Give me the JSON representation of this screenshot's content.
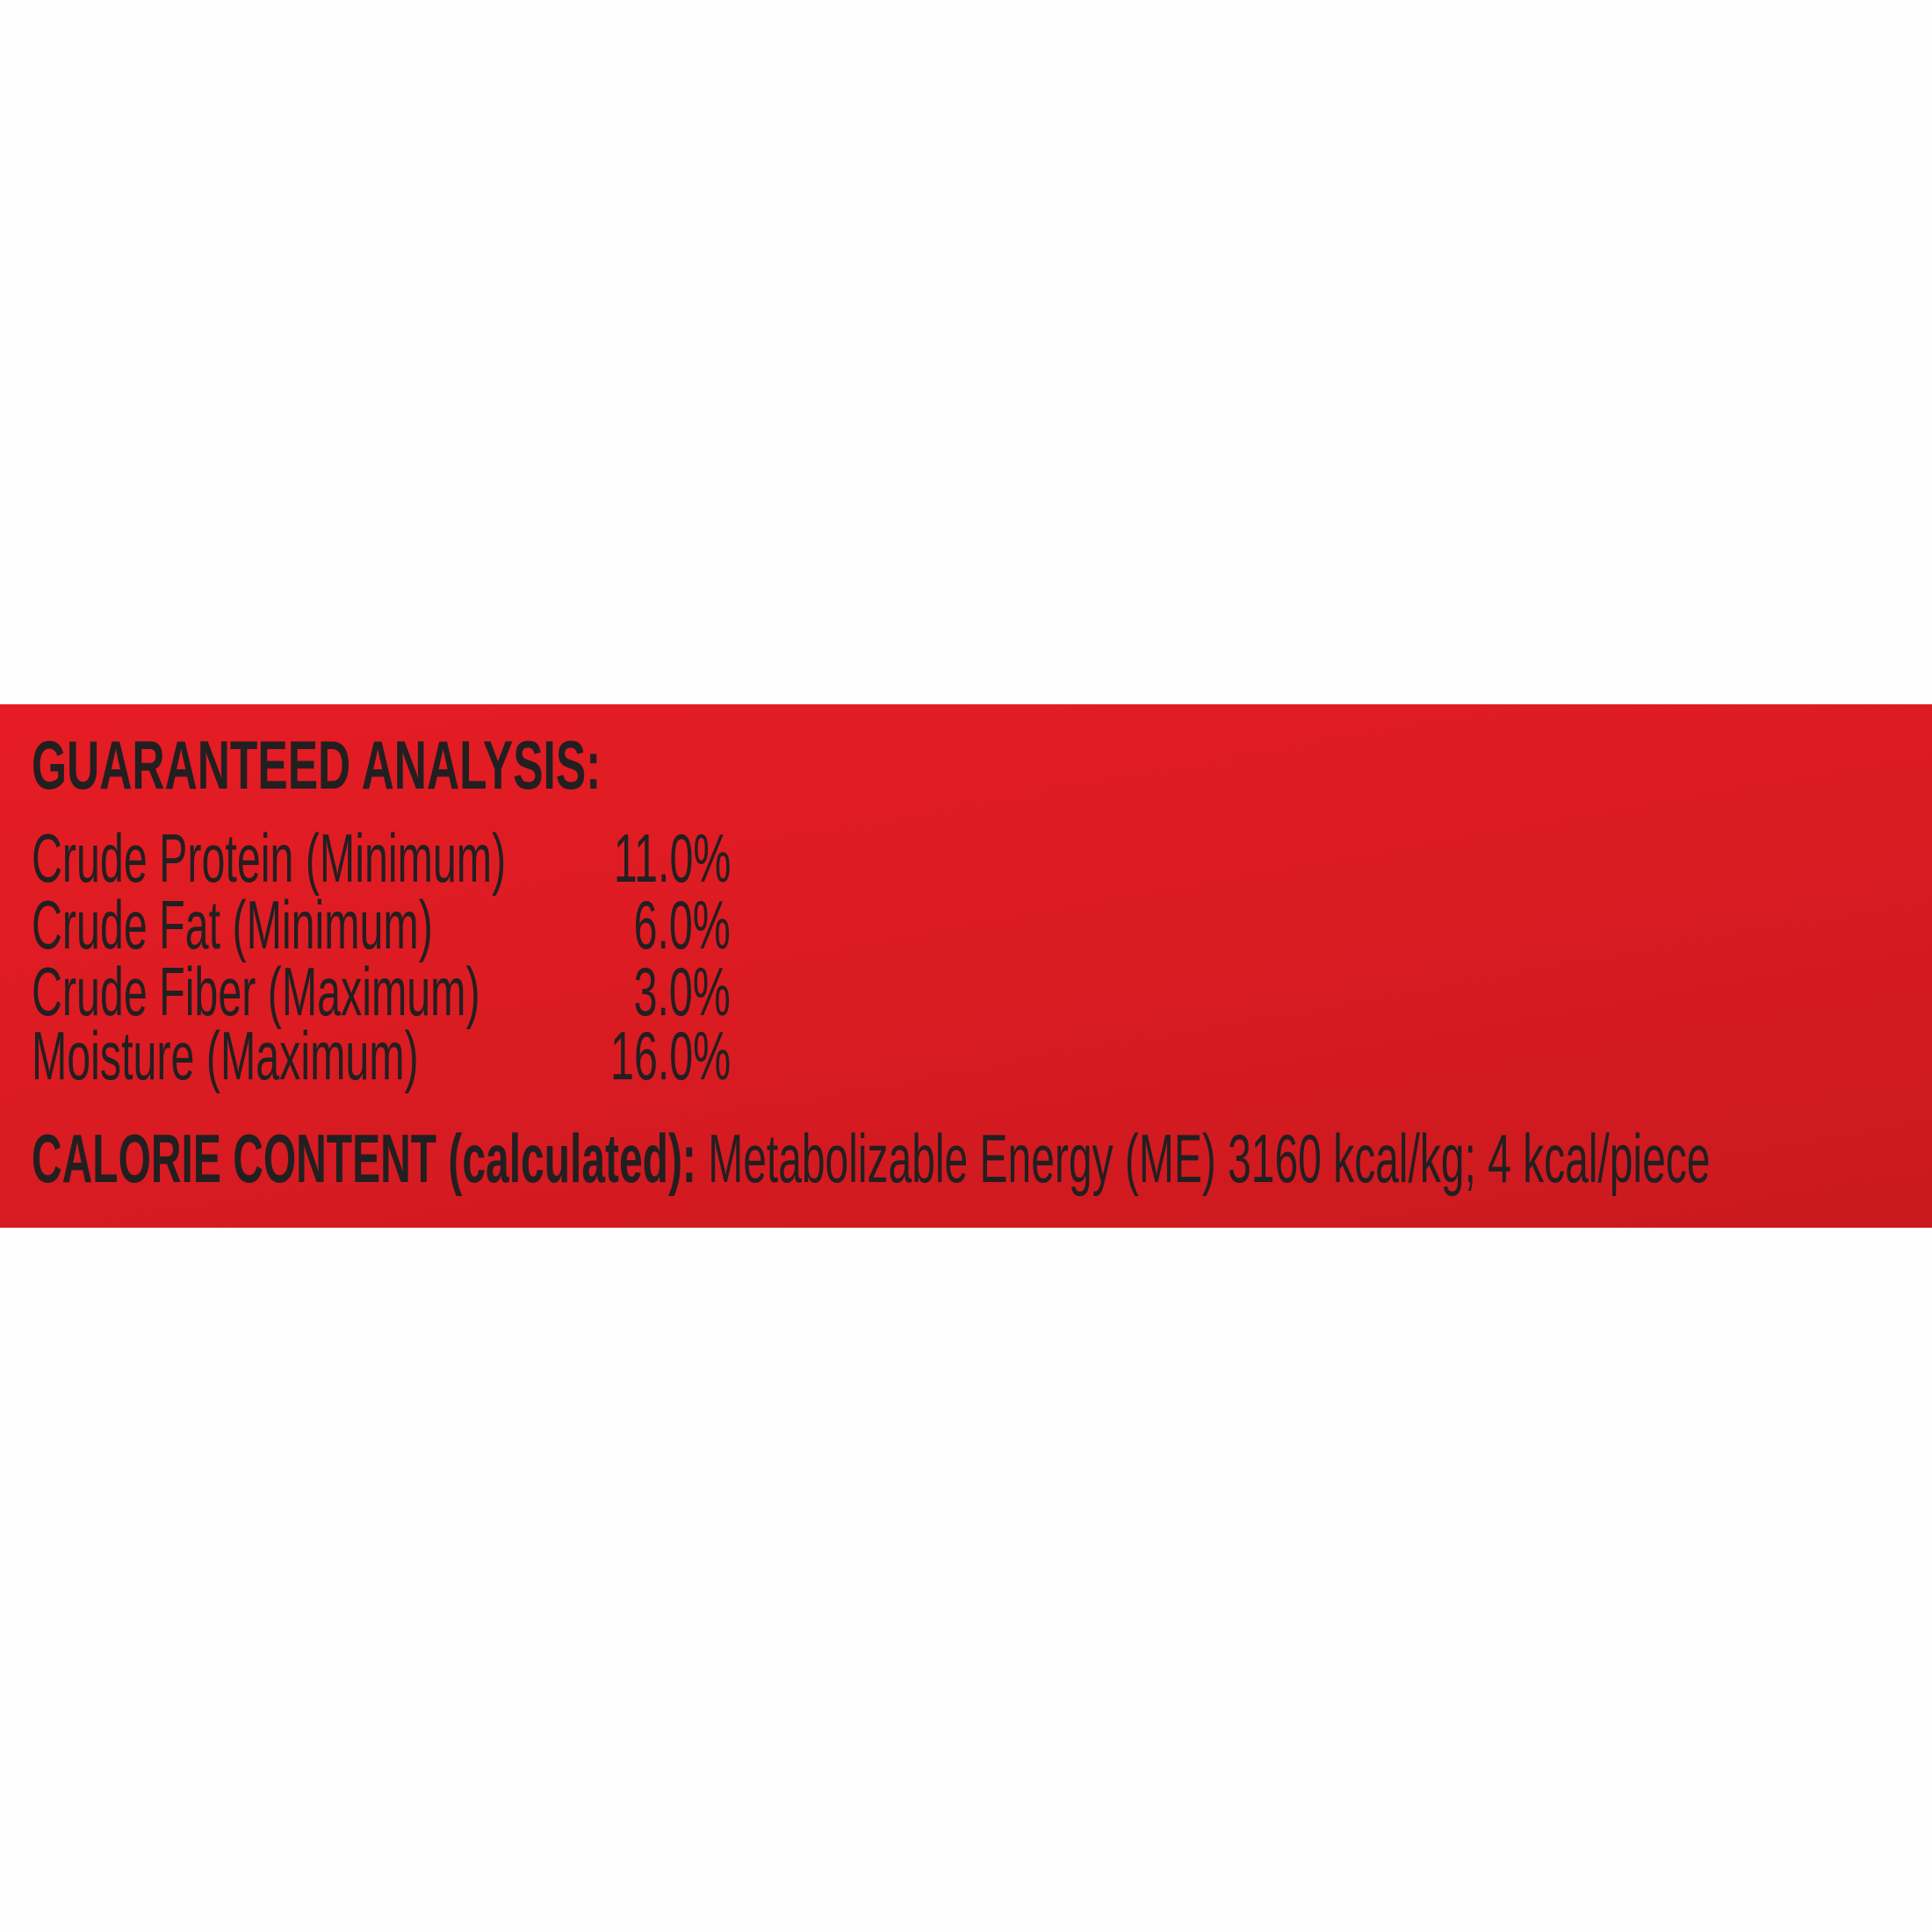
{
  "panel": {
    "background_color": "#e01b23",
    "text_color": "#231f20",
    "heading": "GUARANTEED ANALYSIS:",
    "rows": [
      {
        "label": "Crude Protein (Minimum)",
        "value": "11.0%"
      },
      {
        "label": "Crude Fat (Minimum)",
        "value": "6.0%"
      },
      {
        "label": "Crude Fiber (Maximum)",
        "value": "3.0%"
      },
      {
        "label": "Moisture (Maximum)",
        "value": "16.0%"
      }
    ],
    "calorie_label": "CALORIE CONTENT (calculated):",
    "calorie_value": " Metabolizable Energy (ME) 3160 kcal/kg; 4 kcal/piece"
  }
}
